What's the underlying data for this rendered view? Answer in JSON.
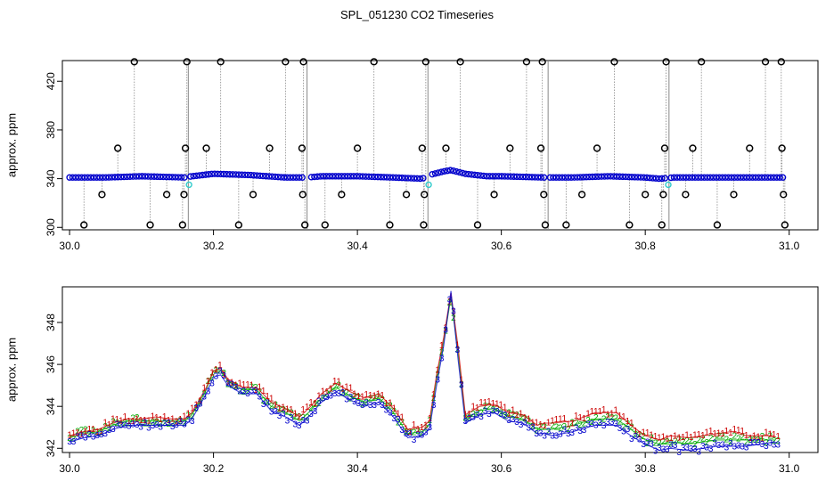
{
  "title": "SPL_051230  CO2 Timeseries",
  "colors": {
    "frame": "#000000",
    "grid_line": "#888888",
    "main_points": "#0000cc",
    "flag_points": "#000000",
    "edge_points": "#33cccc",
    "series_1": "#cc0000",
    "series_2": "#00aa00",
    "series_3": "#0000cc"
  },
  "chart_data": [
    {
      "type": "scatter",
      "name": "raw-flagged",
      "ylabel": "approx. ppm",
      "xlabel": "",
      "xlim": [
        29.99,
        31.04
      ],
      "ylim": [
        298,
        437
      ],
      "xticks": [
        30.0,
        30.2,
        30.4,
        30.6,
        30.8,
        31.0
      ],
      "xtick_labels": [
        "30.0",
        "30.2",
        "30.4",
        "30.6",
        "30.8",
        "31.0"
      ],
      "yticks": [
        300,
        340,
        380,
        420
      ],
      "ytick_labels": [
        "300",
        "340",
        "380",
        "420"
      ],
      "baseline": {
        "x": [
          30.0,
          30.05,
          30.1,
          30.16,
          30.17,
          30.2,
          30.25,
          30.3,
          30.33,
          30.35,
          30.4,
          30.45,
          30.49,
          30.5,
          30.52,
          30.53,
          30.55,
          30.58,
          30.6,
          30.66,
          30.7,
          30.75,
          30.8,
          30.82,
          30.84,
          30.9,
          30.99
        ],
        "y": [
          341,
          341,
          342,
          341,
          342,
          344,
          343,
          341,
          341,
          342,
          342,
          341,
          340,
          343,
          346,
          347,
          344,
          342,
          342,
          341,
          341,
          342,
          341,
          340,
          341,
          341,
          341
        ]
      },
      "segment_breaks": [
        30.165,
        30.33,
        30.498,
        30.665,
        30.833
      ],
      "edge_points": [
        {
          "x": 30.166,
          "y": 335
        },
        {
          "x": 30.499,
          "y": 335
        },
        {
          "x": 30.832,
          "y": 335
        }
      ],
      "flag_points": [
        {
          "x": 30.02,
          "y": 302
        },
        {
          "x": 30.045,
          "y": 327
        },
        {
          "x": 30.067,
          "y": 365
        },
        {
          "x": 30.09,
          "y": 436
        },
        {
          "x": 30.112,
          "y": 302
        },
        {
          "x": 30.135,
          "y": 327
        },
        {
          "x": 30.157,
          "y": 302
        },
        {
          "x": 30.159,
          "y": 327
        },
        {
          "x": 30.161,
          "y": 365
        },
        {
          "x": 30.163,
          "y": 436
        },
        {
          "x": 30.19,
          "y": 365
        },
        {
          "x": 30.21,
          "y": 436
        },
        {
          "x": 30.235,
          "y": 302
        },
        {
          "x": 30.255,
          "y": 327
        },
        {
          "x": 30.278,
          "y": 365
        },
        {
          "x": 30.3,
          "y": 436
        },
        {
          "x": 30.323,
          "y": 365
        },
        {
          "x": 30.324,
          "y": 327
        },
        {
          "x": 30.325,
          "y": 436
        },
        {
          "x": 30.327,
          "y": 302
        },
        {
          "x": 30.355,
          "y": 302
        },
        {
          "x": 30.378,
          "y": 327
        },
        {
          "x": 30.4,
          "y": 365
        },
        {
          "x": 30.423,
          "y": 436
        },
        {
          "x": 30.445,
          "y": 302
        },
        {
          "x": 30.468,
          "y": 327
        },
        {
          "x": 30.49,
          "y": 365
        },
        {
          "x": 30.492,
          "y": 302
        },
        {
          "x": 30.493,
          "y": 327
        },
        {
          "x": 30.495,
          "y": 436
        },
        {
          "x": 30.523,
          "y": 365
        },
        {
          "x": 30.543,
          "y": 436
        },
        {
          "x": 30.567,
          "y": 302
        },
        {
          "x": 30.59,
          "y": 327
        },
        {
          "x": 30.612,
          "y": 365
        },
        {
          "x": 30.635,
          "y": 436
        },
        {
          "x": 30.655,
          "y": 365
        },
        {
          "x": 30.657,
          "y": 436
        },
        {
          "x": 30.659,
          "y": 327
        },
        {
          "x": 30.661,
          "y": 302
        },
        {
          "x": 30.69,
          "y": 302
        },
        {
          "x": 30.712,
          "y": 327
        },
        {
          "x": 30.733,
          "y": 365
        },
        {
          "x": 30.757,
          "y": 436
        },
        {
          "x": 30.778,
          "y": 302
        },
        {
          "x": 30.8,
          "y": 327
        },
        {
          "x": 30.823,
          "y": 302
        },
        {
          "x": 30.825,
          "y": 327
        },
        {
          "x": 30.827,
          "y": 365
        },
        {
          "x": 30.829,
          "y": 436
        },
        {
          "x": 30.856,
          "y": 327
        },
        {
          "x": 30.866,
          "y": 365
        },
        {
          "x": 30.878,
          "y": 436
        },
        {
          "x": 30.9,
          "y": 302
        },
        {
          "x": 30.923,
          "y": 327
        },
        {
          "x": 30.945,
          "y": 365
        },
        {
          "x": 30.967,
          "y": 436
        },
        {
          "x": 30.989,
          "y": 436
        },
        {
          "x": 30.99,
          "y": 365
        },
        {
          "x": 30.992,
          "y": 327
        },
        {
          "x": 30.994,
          "y": 302
        }
      ]
    },
    {
      "type": "line",
      "name": "smoothed-series",
      "ylabel": "approx. ppm",
      "xlabel": "",
      "xlim": [
        29.99,
        31.04
      ],
      "ylim": [
        341.8,
        349.7
      ],
      "xticks": [
        30.0,
        30.2,
        30.4,
        30.6,
        30.8,
        31.0
      ],
      "xtick_labels": [
        "30.0",
        "30.2",
        "30.4",
        "30.6",
        "30.8",
        "31.0"
      ],
      "yticks": [
        342,
        344,
        346,
        348
      ],
      "ytick_labels": [
        "342",
        "344",
        "346",
        "348"
      ],
      "glyphs": [
        "1",
        "2",
        "3"
      ],
      "x": [
        30.0,
        30.02,
        30.04,
        30.06,
        30.08,
        30.1,
        30.12,
        30.14,
        30.16,
        30.17,
        30.19,
        30.2,
        30.21,
        30.22,
        30.24,
        30.26,
        30.28,
        30.3,
        30.32,
        30.335,
        30.35,
        30.37,
        30.39,
        30.41,
        30.43,
        30.45,
        30.47,
        30.49,
        30.5,
        30.51,
        30.52,
        30.53,
        30.54,
        30.55,
        30.57,
        30.59,
        30.61,
        30.63,
        30.65,
        30.66,
        30.67,
        30.7,
        30.73,
        30.76,
        30.78,
        30.8,
        30.82,
        30.835,
        30.86,
        30.88,
        30.9,
        30.92,
        30.94,
        30.96,
        30.98
      ],
      "series": [
        {
          "name": "1",
          "values": [
            342.6,
            342.8,
            342.9,
            343.2,
            343.4,
            343.4,
            343.5,
            343.4,
            343.4,
            343.7,
            344.9,
            345.7,
            345.8,
            345.3,
            344.9,
            344.9,
            344.2,
            343.9,
            343.5,
            344.0,
            344.6,
            345.1,
            344.7,
            344.4,
            344.6,
            343.9,
            342.9,
            343.0,
            343.3,
            345.5,
            347.3,
            349.4,
            346.8,
            343.6,
            344.0,
            344.1,
            343.7,
            343.6,
            343.1,
            343.2,
            343.2,
            343.3,
            343.7,
            343.7,
            343.1,
            342.6,
            342.4,
            342.6,
            342.5,
            342.6,
            342.7,
            342.8,
            342.6,
            342.6,
            342.6
          ]
        },
        {
          "name": "2",
          "values": [
            342.5,
            342.7,
            342.8,
            343.1,
            343.3,
            343.3,
            343.3,
            343.3,
            343.3,
            343.6,
            344.8,
            345.7,
            345.7,
            345.2,
            344.8,
            344.8,
            344.0,
            343.7,
            343.3,
            343.8,
            344.4,
            344.9,
            344.5,
            344.2,
            344.4,
            343.7,
            342.7,
            342.8,
            343.1,
            345.3,
            347.1,
            349.2,
            346.5,
            343.4,
            343.8,
            343.9,
            343.5,
            343.4,
            342.9,
            342.9,
            342.9,
            343.1,
            343.4,
            343.4,
            342.9,
            342.4,
            342.2,
            342.3,
            342.2,
            342.3,
            342.4,
            342.4,
            342.4,
            342.4,
            342.4
          ]
        },
        {
          "name": "3",
          "values": [
            342.3,
            342.5,
            342.6,
            342.9,
            343.1,
            343.1,
            343.1,
            343.1,
            343.1,
            343.4,
            344.6,
            345.4,
            345.5,
            345.0,
            344.6,
            344.6,
            343.8,
            343.5,
            343.1,
            343.6,
            344.2,
            344.7,
            344.3,
            344.0,
            344.2,
            343.5,
            342.5,
            342.6,
            342.9,
            345.0,
            346.9,
            349.5,
            346.2,
            343.2,
            343.6,
            343.7,
            343.3,
            343.2,
            342.7,
            342.7,
            342.6,
            342.8,
            343.1,
            343.1,
            342.6,
            342.2,
            341.9,
            342.0,
            341.9,
            342.0,
            342.1,
            342.1,
            342.1,
            342.2,
            342.3
          ]
        }
      ]
    }
  ]
}
